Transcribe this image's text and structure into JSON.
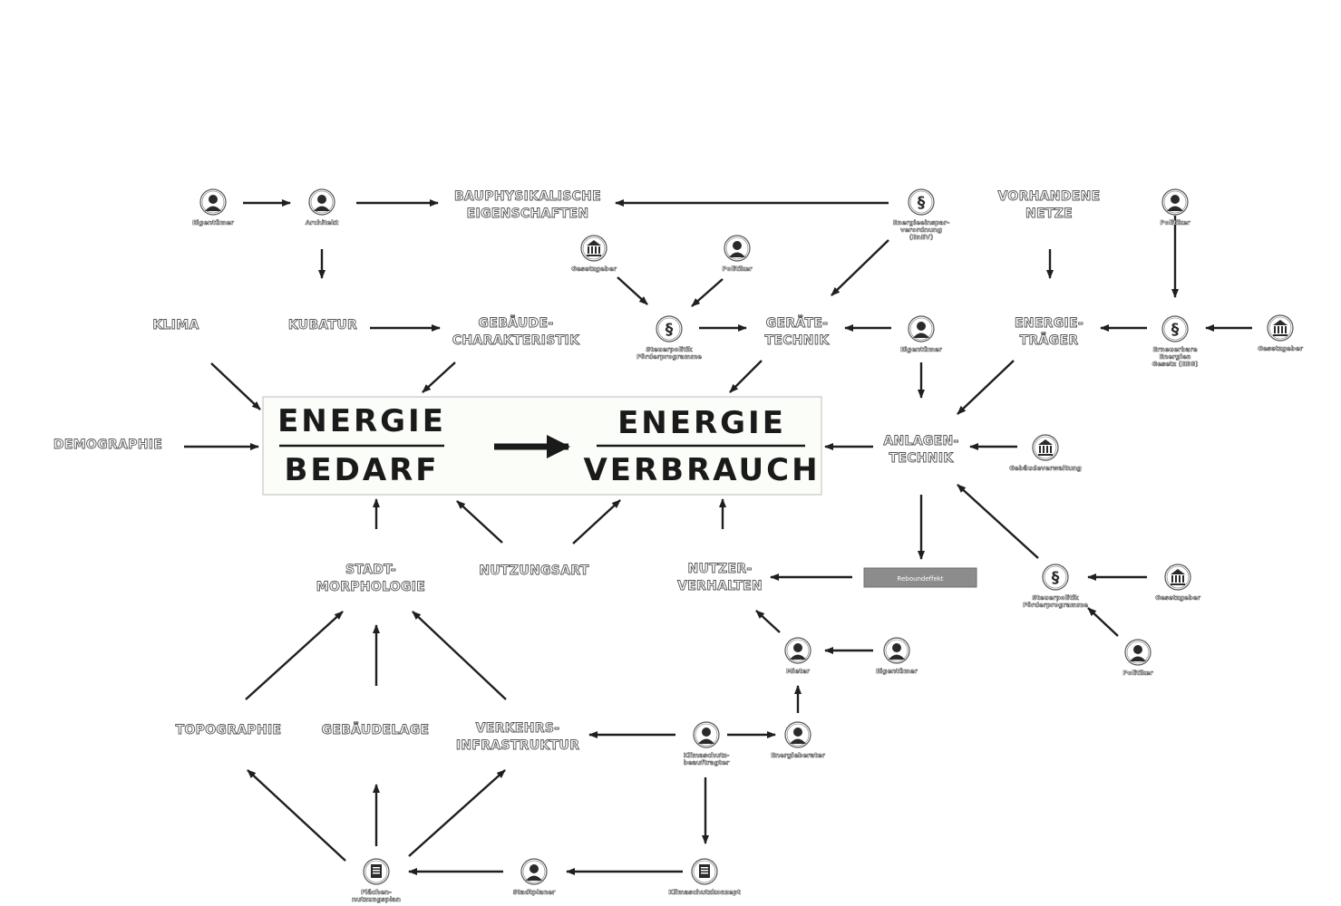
{
  "center": {
    "bedarf_top": "ENERGIE",
    "bedarf_bottom": "BEDARF",
    "verbrauch_top": "ENERGIE",
    "verbrauch_bottom": "VERBRAUCH"
  },
  "nodes": {
    "bauphysik": [
      "BAUPHYSIKALISCHE",
      "EIGENSCHAFTEN"
    ],
    "vorhandene_netze": [
      "VORHANDENE",
      "NETZE"
    ],
    "klima": [
      "KLIMA"
    ],
    "kubatur": [
      "KUBATUR"
    ],
    "gebaeude_char": [
      "GEBÄUDE-",
      "CHARAKTERISTIK"
    ],
    "geraetetechnik": [
      "GERÄTE-",
      "TECHNIK"
    ],
    "energietraeger": [
      "ENERGIE-",
      "TRÄGER"
    ],
    "demographie": [
      "DEMOGRAPHIE"
    ],
    "anlagentechnik": [
      "ANLAGEN-",
      "TECHNIK"
    ],
    "stadtmorphologie": [
      "STADT-",
      "MORPHOLOGIE"
    ],
    "nutzungsart": [
      "NUTZUNGSART"
    ],
    "nutzerverhalten": [
      "NUTZER-",
      "VERHALTEN"
    ],
    "topographie": [
      "TOPOGRAPHIE"
    ],
    "gebaeudelage": [
      "GEBÄUDELAGE"
    ],
    "verkehrsinfrastruktur": [
      "VERKEHRS-",
      "INFRASTRUKTUR"
    ]
  },
  "actors": {
    "eigentuemer_1": [
      "Eigentümer"
    ],
    "architekt": [
      "Architekt"
    ],
    "enev": [
      "Energieeinspar-",
      "verordnung",
      "(EnEV)"
    ],
    "politiker_1": [
      "Politiker"
    ],
    "gesetzgeber_1": [
      "Gesetzgeber"
    ],
    "politiker_2": [
      "Politiker"
    ],
    "steuerpolitik": [
      "Steuerpolitik",
      "Förderprogramme"
    ],
    "eigentuemer_2": [
      "Eigentümer"
    ],
    "eeg": [
      "Erneuerbare",
      "Energien",
      "Gesetz (EEG)"
    ],
    "gesetzgeber_2": [
      "Gesetzgeber"
    ],
    "gebaeudeverwaltung": [
      "Gebäudeverwaltung"
    ],
    "steuerpolitik_2": [
      "Steuerpolitik",
      "Förderprogramme"
    ],
    "gesetzgeber_3": [
      "Gesetzgeber"
    ],
    "politiker_3": [
      "Politiker"
    ],
    "mieter": [
      "Mieter"
    ],
    "eigentuemer_3": [
      "Eigentümer"
    ],
    "klimaschutz_beauftragter": [
      "Klimaschutz-",
      "beauftragter"
    ],
    "energieberater": [
      "Energieberater"
    ],
    "flaechennutzungsplan": [
      "Flächen-",
      "nutzungsplan"
    ],
    "stadtplaner": [
      "Stadtplaner"
    ],
    "klimaschutzkonzept": [
      "Klimaschutzkonzept"
    ]
  },
  "rebound": "Reboundeffekt",
  "colors": {
    "arrow": "#1f1f1f",
    "label_outline": "#555555",
    "rebound_fill": "#8c8c8c",
    "center_border": "#bdbdbd"
  }
}
